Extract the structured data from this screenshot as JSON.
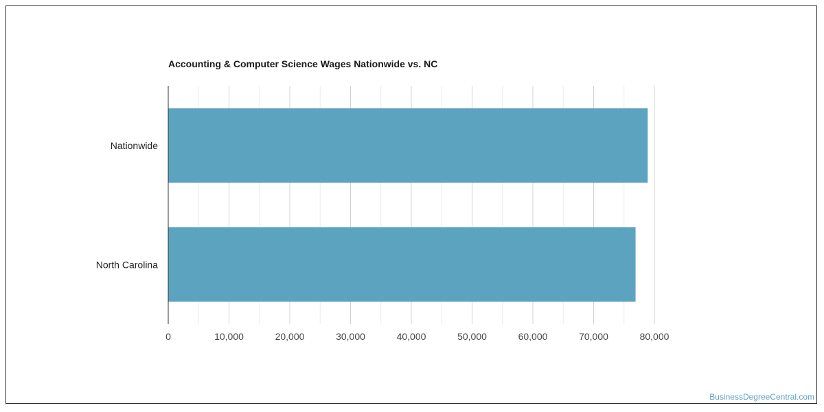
{
  "chart_data": {
    "type": "bar",
    "orientation": "horizontal",
    "title": "Accounting & Computer Science Wages Nationwide vs. NC",
    "categories": [
      "Nationwide",
      "North Carolina"
    ],
    "values": [
      78900,
      76900
    ],
    "xlim": [
      0,
      80000
    ],
    "ticks": [
      "0",
      "10,000",
      "20,000",
      "30,000",
      "40,000",
      "50,000",
      "60,000",
      "70,000",
      "80,000"
    ],
    "xlabel": "",
    "ylabel": "",
    "grid": true,
    "legend": "none",
    "bar_color": "#5ca3c0"
  },
  "watermark": {
    "text": "BusinessDegreeCentral.com",
    "color": "#5ca3c0"
  }
}
